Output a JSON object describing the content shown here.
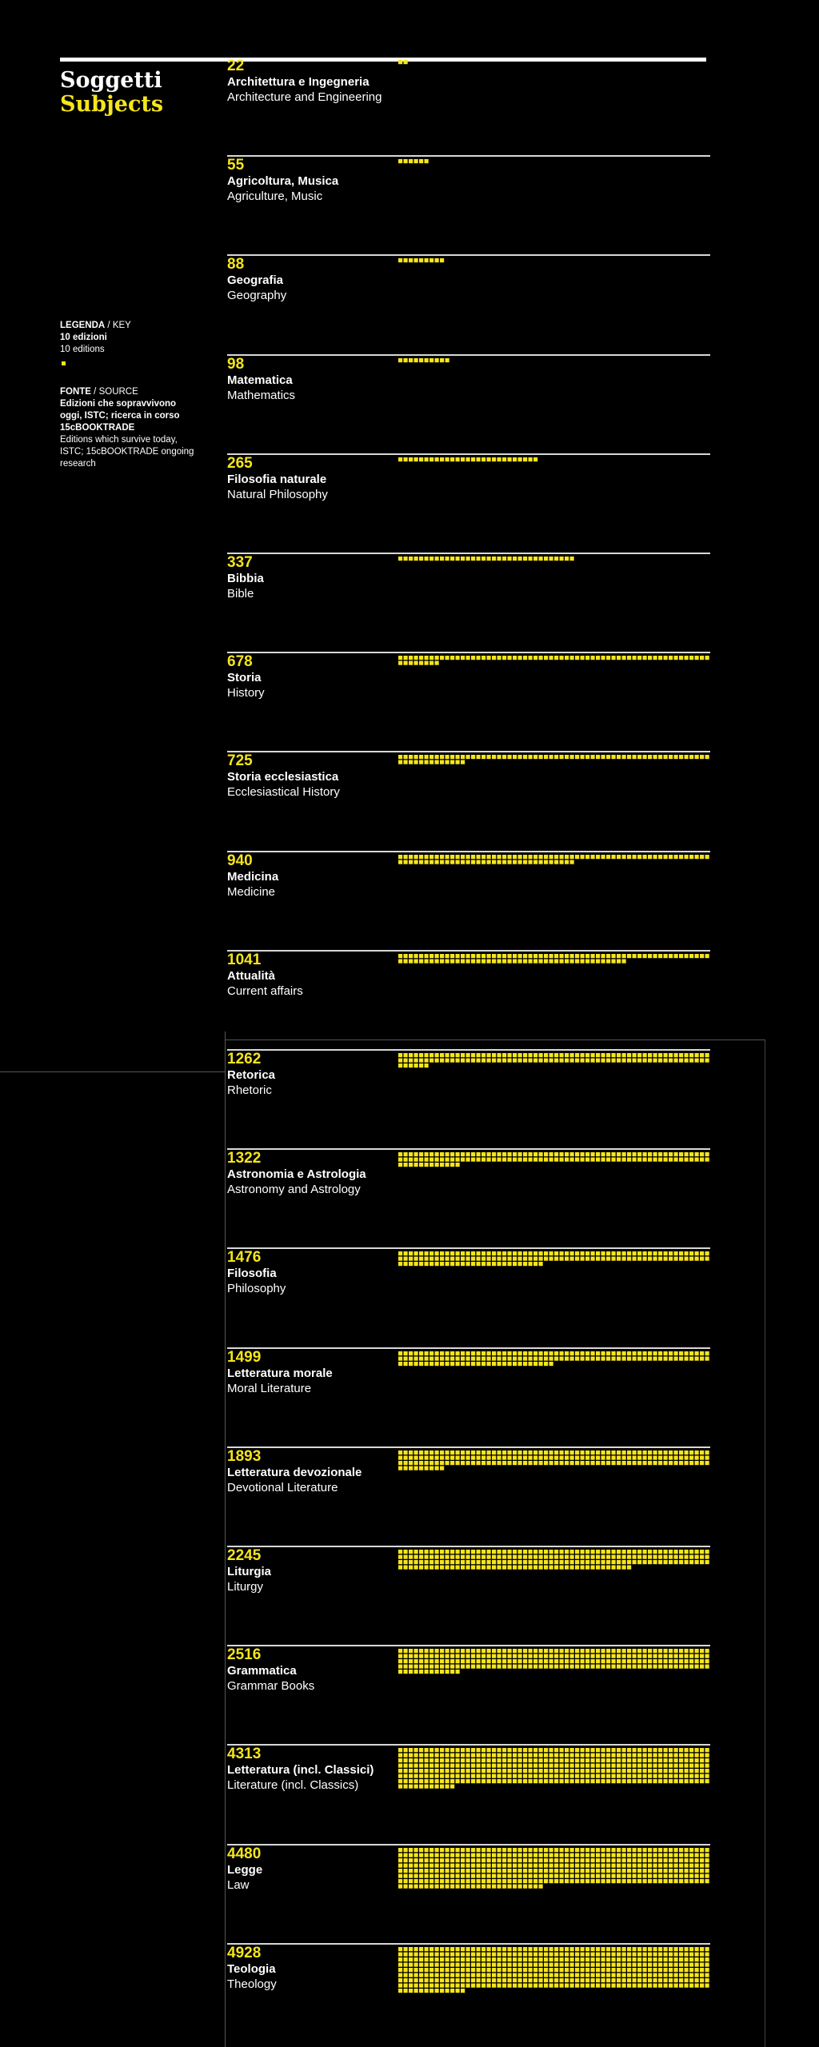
{
  "header": {
    "title_it": "Soggetti",
    "title_en": "Subjects"
  },
  "legend": {
    "label_it": "LEGENDA",
    "label_en": "KEY",
    "value_it": "10 edizioni",
    "value_en": "10 editions"
  },
  "source": {
    "label_it": "FONTE",
    "label_en": "SOURCE",
    "text_it": "Edizioni che sopravvivono oggi, ISTC; ricerca in corso 15cBOOKTRADE",
    "text_en": "Editions which survive today, ISTC; 15cBOOKTRADE ongoing research"
  },
  "colors": {
    "accent": "#f5e51c",
    "background": "#000000",
    "text": "#ffffff",
    "separator": "#d8d8d8"
  },
  "chart_data": {
    "type": "unit",
    "unit_value": 10,
    "unit_label": "10 editions",
    "categories": [
      {
        "count": 22,
        "it": "Architettura e Ingegneria",
        "en": "Architecture and Engineering"
      },
      {
        "count": 55,
        "it": "Agricoltura, Musica",
        "en": "Agriculture, Music"
      },
      {
        "count": 88,
        "it": "Geografia",
        "en": "Geography"
      },
      {
        "count": 98,
        "it": "Matematica",
        "en": "Mathematics"
      },
      {
        "count": 265,
        "it": "Filosofia naturale",
        "en": "Natural Philosophy"
      },
      {
        "count": 337,
        "it": "Bibbia",
        "en": "Bible"
      },
      {
        "count": 678,
        "it": "Storia",
        "en": "History"
      },
      {
        "count": 725,
        "it": "Storia ecclesiastica",
        "en": "Ecclesiastical History"
      },
      {
        "count": 940,
        "it": "Medicina",
        "en": "Medicine"
      },
      {
        "count": 1041,
        "it": "Attualità",
        "en": "Current affairs"
      },
      {
        "count": 1262,
        "it": "Retorica",
        "en": "Rhetoric"
      },
      {
        "count": 1322,
        "it": "Astronomia e Astrologia",
        "en": "Astronomy and Astrology"
      },
      {
        "count": 1476,
        "it": "Filosofia",
        "en": "Philosophy"
      },
      {
        "count": 1499,
        "it": "Letteratura morale",
        "en": "Moral Literature"
      },
      {
        "count": 1893,
        "it": "Letteratura devozionale",
        "en": "Devotional Literature"
      },
      {
        "count": 2245,
        "it": "Liturgia",
        "en": "Liturgy"
      },
      {
        "count": 2516,
        "it": "Grammatica",
        "en": "Grammar Books"
      },
      {
        "count": 4313,
        "it": "Letteratura (incl. Classici)",
        "en": "Literature (incl. Classics)"
      },
      {
        "count": 4480,
        "it": "Legge",
        "en": "Law"
      },
      {
        "count": 4928,
        "it": "Teologia",
        "en": "Theology"
      }
    ]
  }
}
